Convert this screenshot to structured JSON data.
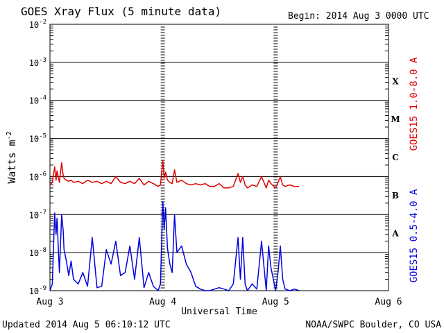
{
  "header": {
    "title": "GOES Xray Flux (5 minute data)",
    "begin": "Begin:  2014 Aug 3 0000 UTC"
  },
  "footer": {
    "updated": "Updated 2014 Aug  5 06:10:12 UTC",
    "credit": "NOAA/SWPC Boulder, CO USA"
  },
  "colors": {
    "long_channel": "#e00000",
    "short_channel": "#0000e0",
    "axis": "#000000"
  },
  "chart_data": {
    "type": "line",
    "title": "GOES Xray Flux (5 minute data)",
    "xlabel": "Universal Time",
    "ylabel": "Watts m",
    "ylabel_superscript": "-2",
    "y_scale": "log",
    "ylim": [
      1e-09,
      0.01
    ],
    "xlim_hours": [
      0,
      72
    ],
    "x_ticks": [
      "Aug 3",
      "Aug 4",
      "Aug 5",
      "Aug 6"
    ],
    "y_ticks": [
      {
        "base": "10",
        "exp": "-2"
      },
      {
        "base": "10",
        "exp": "-3"
      },
      {
        "base": "10",
        "exp": "-4"
      },
      {
        "base": "10",
        "exp": "-5"
      },
      {
        "base": "10",
        "exp": "-6"
      },
      {
        "base": "10",
        "exp": "-7"
      },
      {
        "base": "10",
        "exp": "-8"
      },
      {
        "base": "10",
        "exp": "-9"
      }
    ],
    "flare_classes": [
      "X",
      "M",
      "C",
      "B",
      "A"
    ],
    "grid": "horizontal",
    "series": [
      {
        "name": "GOES15 1.0-8.0 A",
        "x_hours": [
          0,
          0.5,
          1,
          1.3,
          1.5,
          2,
          2.5,
          2.8,
          3,
          3.5,
          4,
          4.5,
          5,
          6,
          7,
          8,
          9,
          10,
          11,
          12,
          13,
          14,
          15,
          16,
          17,
          18,
          19,
          20,
          21,
          22,
          23,
          23.5,
          24,
          24.3,
          24.6,
          25,
          25.5,
          26,
          26.5,
          27,
          28,
          29,
          30,
          31,
          32,
          33,
          34,
          35,
          36,
          37,
          38,
          39,
          40,
          40.5,
          41,
          41.5,
          42,
          43,
          44,
          45,
          46,
          46.5,
          47,
          48,
          48.5,
          49,
          49.5,
          50,
          51,
          52,
          53
        ],
        "values": [
          6e-07,
          7e-07,
          1.8e-06,
          8e-07,
          1.4e-06,
          7e-07,
          2.3e-06,
          1.1e-06,
          9e-07,
          8e-07,
          7.5e-07,
          8e-07,
          7e-07,
          7.5e-07,
          6.5e-07,
          8e-07,
          7e-07,
          7.5e-07,
          6.5e-07,
          7.5e-07,
          6.5e-07,
          1e-06,
          7e-07,
          6.5e-07,
          7.5e-07,
          6.5e-07,
          9e-07,
          6e-07,
          7.5e-07,
          6.5e-07,
          5.5e-07,
          6e-07,
          2.6e-06,
          9e-07,
          1.3e-06,
          8e-07,
          7e-07,
          6.5e-07,
          1.5e-06,
          7e-07,
          8e-07,
          6.5e-07,
          6e-07,
          6.5e-07,
          6e-07,
          6.5e-07,
          5.5e-07,
          5.5e-07,
          6.5e-07,
          5e-07,
          5e-07,
          5.5e-07,
          1.2e-06,
          7e-07,
          1e-06,
          6e-07,
          5e-07,
          6e-07,
          5.5e-07,
          1e-06,
          5e-07,
          8e-07,
          6.5e-07,
          5e-07,
          7e-07,
          1e-06,
          6e-07,
          5.5e-07,
          6e-07,
          5.5e-07,
          5.5e-07
        ]
      },
      {
        "name": "GOES15 0.5-4.0 A",
        "x_hours": [
          0,
          0.5,
          1,
          1.3,
          1.5,
          2,
          2.5,
          2.8,
          3,
          3.5,
          4,
          4.5,
          5,
          6,
          7,
          8,
          9,
          10,
          11,
          12,
          13,
          14,
          15,
          16,
          17,
          18,
          19,
          20,
          21,
          22,
          23,
          23.5,
          24,
          24.3,
          24.6,
          25,
          25.5,
          26,
          26.5,
          27,
          28,
          29,
          30,
          31,
          32,
          33,
          34,
          35,
          36,
          37,
          38,
          39,
          40,
          40.5,
          41,
          41.5,
          42,
          43,
          44,
          45,
          46,
          46.5,
          47,
          48,
          48.5,
          49,
          49.5,
          50,
          51,
          52,
          53
        ],
        "values": [
          1e-09,
          1.5e-09,
          1.1e-07,
          3e-08,
          8e-08,
          3e-09,
          1e-07,
          4e-08,
          1.2e-08,
          6e-09,
          2.5e-09,
          6e-09,
          2e-09,
          1.5e-09,
          3e-09,
          1.3e-09,
          2.5e-08,
          1.2e-09,
          1.3e-09,
          1.2e-08,
          5e-09,
          2e-08,
          2.5e-09,
          3e-09,
          1.5e-08,
          2e-09,
          2.5e-08,
          1.2e-09,
          3e-09,
          1.3e-09,
          1e-09,
          1.5e-09,
          2.2e-07,
          4e-08,
          1.5e-07,
          1.3e-08,
          5e-09,
          3e-09,
          1e-07,
          1e-08,
          1.5e-08,
          5e-09,
          3e-09,
          1.3e-09,
          1.1e-09,
          1e-09,
          1e-09,
          1.1e-09,
          1.2e-09,
          1.1e-09,
          1e-09,
          1.5e-09,
          2.5e-08,
          2e-09,
          2.5e-08,
          1.5e-09,
          1e-09,
          1.5e-09,
          1.1e-09,
          2e-08,
          1e-09,
          1.5e-08,
          4e-09,
          1e-09,
          3e-09,
          1.5e-08,
          2e-09,
          1.1e-09,
          1e-09,
          1.1e-09,
          1e-09
        ]
      }
    ]
  }
}
